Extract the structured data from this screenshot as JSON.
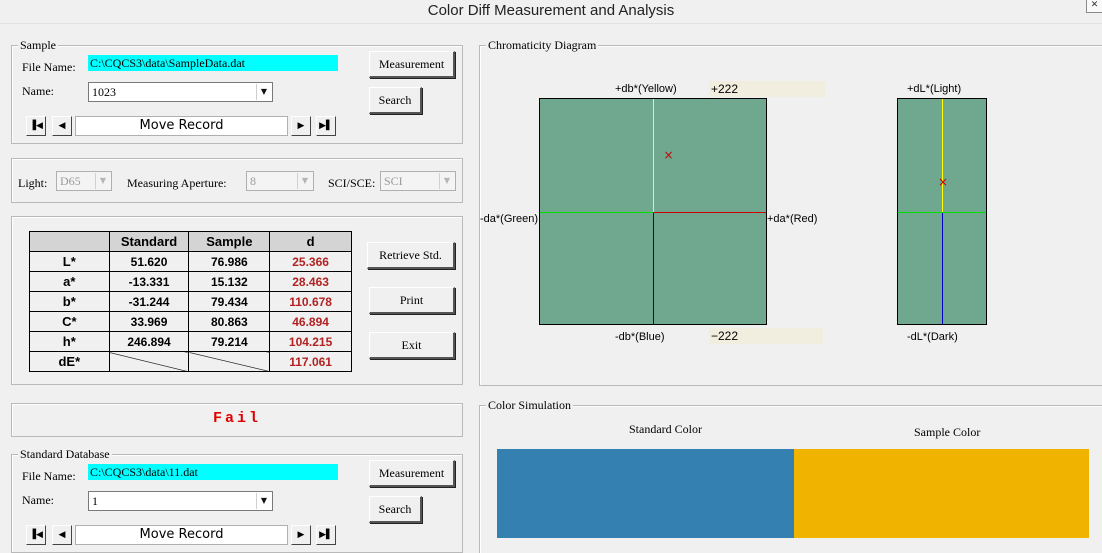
{
  "window": {
    "title": "Color Diff Measurement and Analysis",
    "close_glyph": "✕"
  },
  "sample": {
    "legend": "Sample",
    "file_label": "File Name:",
    "file_value": "C:\\CQCS3\\data\\SampleData.dat",
    "name_label": "Name:",
    "name_value": "1023",
    "measurement_label": "Measurement",
    "search_label": "Search",
    "move_record_label": "Move Record"
  },
  "options": {
    "light_label": "Light:",
    "light_value": "D65",
    "aperture_label": "Measuring Aperture:",
    "aperture_value": "8",
    "sci_label": "SCI/SCE:",
    "sci_value": "SCI"
  },
  "results": {
    "headers": [
      "",
      "Standard",
      "Sample",
      "d"
    ],
    "rows": [
      {
        "label": "L*",
        "standard": "51.620",
        "sample": "76.986",
        "d": "25.366"
      },
      {
        "label": "a*",
        "standard": "-13.331",
        "sample": "15.132",
        "d": "28.463"
      },
      {
        "label": "b*",
        "standard": "-31.244",
        "sample": "79.434",
        "d": "110.678"
      },
      {
        "label": "C*",
        "standard": "33.969",
        "sample": "80.863",
        "d": "46.894"
      },
      {
        "label": "h*",
        "standard": "246.894",
        "sample": "79.214",
        "d": "104.215"
      },
      {
        "label": "dE*",
        "standard": "",
        "sample": "",
        "d": "117.061"
      }
    ],
    "retrieve_label": "Retrieve Std.",
    "print_label": "Print",
    "exit_label": "Exit",
    "d_color": "#b22222"
  },
  "status": {
    "text": "Fail",
    "color": "#e00000"
  },
  "standard_db": {
    "legend": "Standard Database",
    "file_label": "File Name:",
    "file_value": "C:\\CQCS3\\data\\11.dat",
    "name_label": "Name:",
    "name_value": "1",
    "measurement_label": "Measurement",
    "search_label": "Search",
    "move_record_label": "Move Record"
  },
  "nav_icons": {
    "first": "▐◀",
    "prev": "◀",
    "next": "▶",
    "last": "▶▌",
    "dropdown": "▼"
  },
  "chromaticity": {
    "legend": "Chromaticity Diagram",
    "top_label": "+db*(Yellow)",
    "top_value": "+222",
    "bottom_label": "-db*(Blue)",
    "bottom_value": "−222",
    "left_label": "-da*(Green)",
    "right_label": "+da*(Red)",
    "light_label": "+dL*(Light)",
    "dark_label": "-dL*(Dark)",
    "axis_range": [
      -222,
      222
    ],
    "marker_ab": {
      "da": 28.463,
      "db": 110.678
    },
    "marker_L": {
      "dL": 25.366
    },
    "marker_glyph": "×",
    "plot_color": "#6fa78f",
    "axis_colors": {
      "yellow": "#ffff00",
      "green": "#00e000",
      "red": "#cc0000",
      "blue": "#0000cc"
    }
  },
  "simulation": {
    "legend": "Color Simulation",
    "standard_label": "Standard Color",
    "sample_label": "Sample Color",
    "standard_color": "#3480b0",
    "sample_color": "#f0b400"
  }
}
